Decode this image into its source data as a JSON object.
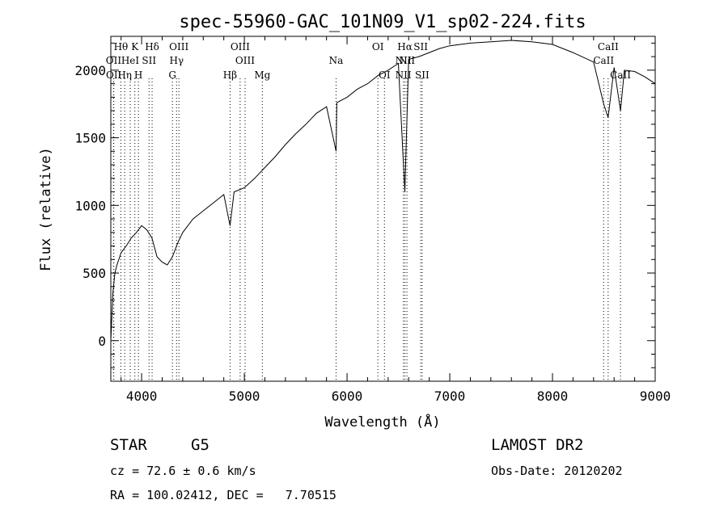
{
  "chart_data": {
    "type": "line",
    "title": "spec-55960-GAC_101N09_V1_sp02-224.fits",
    "xlabel": "Wavelength (Å)",
    "ylabel": "Flux (relative)",
    "xlim": [
      3700,
      9000
    ],
    "ylim": [
      -300,
      2250
    ],
    "x_ticks": [
      4000,
      5000,
      6000,
      7000,
      8000,
      9000
    ],
    "y_ticks": [
      0,
      500,
      1000,
      1500,
      2000
    ],
    "grid": false,
    "series": [
      {
        "x": [
          3700,
          3720,
          3740,
          3760,
          3800,
          3850,
          3900,
          3950,
          4000,
          4050,
          4100,
          4150,
          4200,
          4250,
          4300,
          4350,
          4400,
          4500,
          4600,
          4700,
          4800,
          4861,
          4900,
          5000,
          5100,
          5200,
          5300,
          5400,
          5500,
          5600,
          5700,
          5800,
          5893,
          5900,
          6000,
          6100,
          6200,
          6300,
          6400,
          6500,
          6563,
          6600,
          6700,
          6800,
          6900,
          7000,
          7200,
          7400,
          7600,
          7800,
          8000,
          8200,
          8400,
          8498,
          8542,
          8600,
          8662,
          8700,
          8800,
          8900,
          9000
        ],
        "y": [
          0,
          350,
          500,
          560,
          650,
          700,
          760,
          800,
          850,
          820,
          760,
          620,
          580,
          560,
          620,
          720,
          800,
          900,
          960,
          1020,
          1080,
          850,
          1100,
          1130,
          1200,
          1280,
          1360,
          1450,
          1530,
          1600,
          1680,
          1730,
          1400,
          1760,
          1800,
          1860,
          1900,
          1960,
          2000,
          2050,
          1100,
          2080,
          2100,
          2130,
          2160,
          2180,
          2200,
          2210,
          2220,
          2210,
          2190,
          2130,
          2060,
          1750,
          1650,
          2020,
          1700,
          2000,
          1990,
          1950,
          1900
        ]
      }
    ],
    "lines": [
      {
        "label": "Hθ",
        "x": 3798,
        "row": 0,
        "color": "#000000"
      },
      {
        "label": "K",
        "x": 3934,
        "row": 0,
        "color": "#000000"
      },
      {
        "label": "Hδ",
        "x": 4102,
        "row": 0,
        "color": "#000000"
      },
      {
        "label": "OIII",
        "x": 4363,
        "row": 0,
        "color": "#000000"
      },
      {
        "label": "OIII",
        "x": 4959,
        "row": 0,
        "color": "#000000"
      },
      {
        "label": "OI",
        "x": 6300,
        "row": 0,
        "color": "#000000"
      },
      {
        "label": "Hα",
        "x": 6563,
        "row": 0,
        "color": "#000000"
      },
      {
        "label": "SII",
        "x": 6717,
        "row": 0,
        "color": "#000000"
      },
      {
        "label": "CaII",
        "x": 8542,
        "row": 0,
        "color": "#000000"
      },
      {
        "label": "OII",
        "x": 3727,
        "row": 1,
        "color": "#000000"
      },
      {
        "label": "HeI",
        "x": 3889,
        "row": 1,
        "color": "#000000"
      },
      {
        "label": "SII",
        "x": 4072,
        "row": 1,
        "color": "#000000"
      },
      {
        "label": "Hγ",
        "x": 4340,
        "row": 1,
        "color": "#000000"
      },
      {
        "label": "OIII",
        "x": 5007,
        "row": 1,
        "color": "#000000"
      },
      {
        "label": "Na",
        "x": 5893,
        "row": 1,
        "color": "#000000"
      },
      {
        "label": "NII",
        "x": 6548,
        "row": 1,
        "color": "#000000"
      },
      {
        "label": "NII",
        "x": 6583,
        "row": 1,
        "color": "#000000"
      },
      {
        "label": "CaII",
        "x": 8498,
        "row": 1,
        "color": "#000000"
      },
      {
        "label": "OII",
        "x": 3729,
        "row": 2,
        "color": "#000000"
      },
      {
        "label": "Hη",
        "x": 3835,
        "row": 2,
        "color": "#000000"
      },
      {
        "label": "H",
        "x": 3969,
        "row": 2,
        "color": "#000000"
      },
      {
        "label": "G",
        "x": 4300,
        "row": 2,
        "color": "#000000"
      },
      {
        "label": "Hβ",
        "x": 4861,
        "row": 2,
        "color": "#000000"
      },
      {
        "label": "Mg",
        "x": 5175,
        "row": 2,
        "color": "#000000"
      },
      {
        "label": "OI",
        "x": 6364,
        "row": 2,
        "color": "#000000"
      },
      {
        "label": "NII",
        "x": 6548,
        "row": 2,
        "color": "#000000"
      },
      {
        "label": "SII",
        "x": 6731,
        "row": 2,
        "color": "#000000"
      },
      {
        "label": "CaII",
        "x": 8662,
        "row": 2,
        "color": "#000000"
      }
    ]
  },
  "info": {
    "class": "STAR",
    "subclass": "G5",
    "survey": "LAMOST DR2",
    "cz": "cz = 72.6 ± 0.6 km/s",
    "obs_date": "Obs-Date: 20120202",
    "coords": "RA = 100.02412, DEC =   7.70515"
  },
  "colors": {
    "line": "#000000",
    "background": "#ffffff",
    "marker_line": "#000000"
  }
}
